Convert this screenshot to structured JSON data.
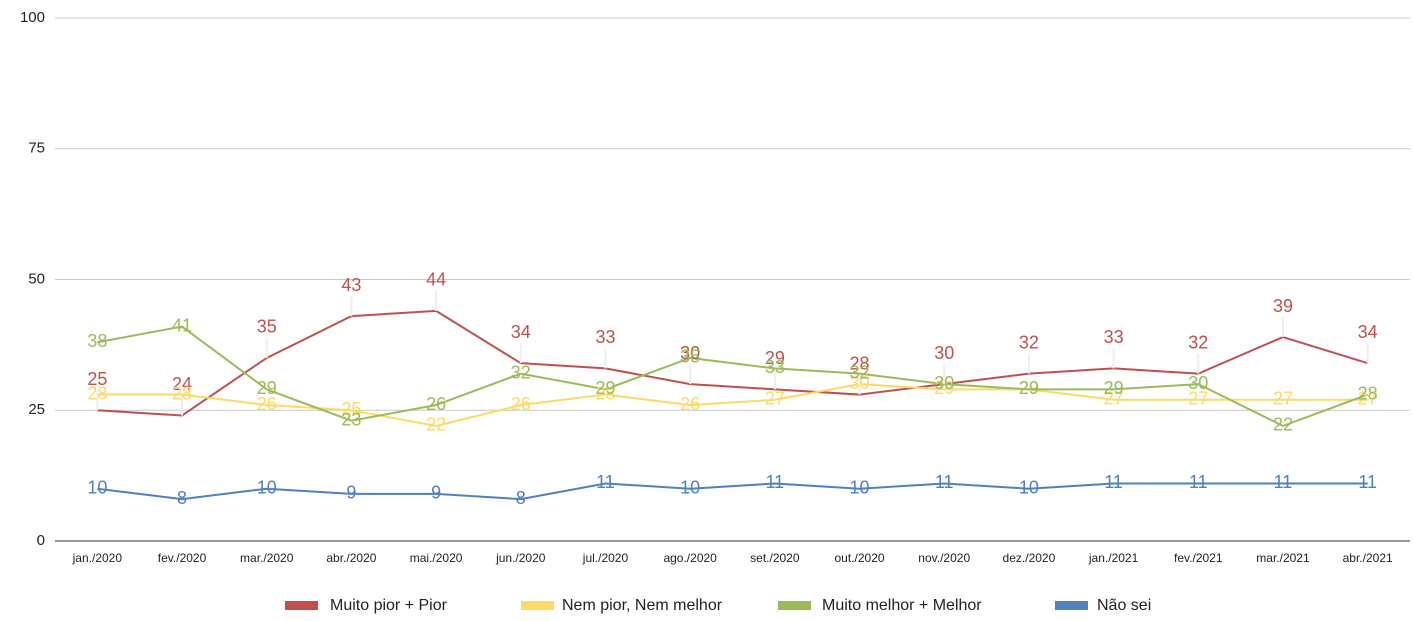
{
  "chart_data": {
    "type": "line",
    "categories": [
      "jan./2020",
      "fev./2020",
      "mar./2020",
      "abr./2020",
      "mai./2020",
      "jun./2020",
      "jul./2020",
      "ago./2020",
      "set./2020",
      "out./2020",
      "nov./2020",
      "dez./2020",
      "jan./2021",
      "fev./2021",
      "mar./2021",
      "abr./2021"
    ],
    "series": [
      {
        "name": "Muito pior + Pior",
        "color": "#c0504d",
        "values": [
          25,
          24,
          35,
          43,
          44,
          34,
          33,
          30,
          29,
          28,
          30,
          32,
          33,
          32,
          39,
          34
        ]
      },
      {
        "name": "Nem pior, Nem melhor",
        "color": "#ffd966",
        "values": [
          28,
          28,
          26,
          25,
          22,
          26,
          28,
          26,
          27,
          30,
          29,
          29,
          27,
          27,
          27,
          27
        ]
      },
      {
        "name": "Muito melhor + Melhor",
        "color": "#9bbb59",
        "values": [
          38,
          41,
          29,
          23,
          26,
          32,
          29,
          35,
          33,
          32,
          30,
          29,
          29,
          30,
          22,
          28
        ]
      },
      {
        "name": "Não sei",
        "color": "#4f81bd",
        "values": [
          10,
          8,
          10,
          9,
          9,
          8,
          11,
          10,
          11,
          10,
          11,
          10,
          11,
          11,
          11,
          11
        ]
      }
    ],
    "ylim": [
      0,
      100
    ],
    "yticks": [
      0,
      25,
      50,
      75,
      100
    ],
    "grid": true,
    "legend": "bottom"
  }
}
